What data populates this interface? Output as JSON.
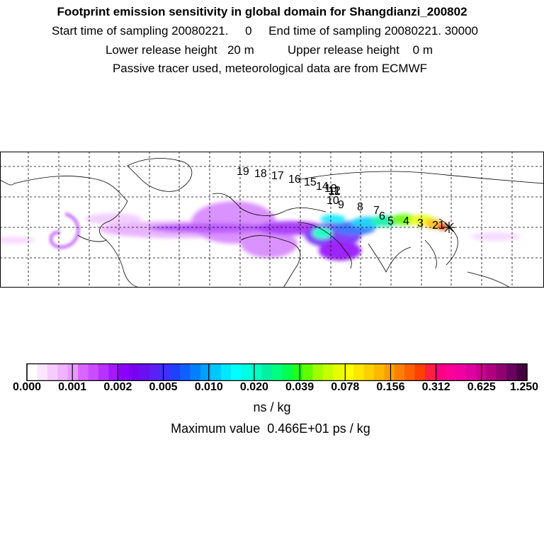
{
  "header": {
    "title": "Footprint emission sensitivity in global domain for Shangdianzi_200802",
    "line2": "Start time of sampling 20080221.     0     End time of sampling 20080221. 30000",
    "line3": "Lower release height   20 m          Upper release height    0 m",
    "line4": "Passive tracer used, meteorological data are from ECMWF"
  },
  "map": {
    "station_marker": "star-icon",
    "trajectory_labels": [
      "21",
      "3",
      "4",
      "5",
      "6",
      "7",
      "8",
      "9",
      "10",
      "11",
      "12",
      "13",
      "14",
      "15",
      "16",
      "17",
      "18",
      "19"
    ]
  },
  "colorbar": {
    "ticks": [
      "0.000",
      "0.001",
      "0.002",
      "0.005",
      "0.010",
      "0.020",
      "0.039",
      "0.078",
      "0.156",
      "0.312",
      "0.625",
      "1.250"
    ],
    "colors": [
      "#ffffff",
      "#fbe6ff",
      "#f5ccff",
      "#efb3ff",
      "#e999ff",
      "#d966ff",
      "#c94dff",
      "#b833ff",
      "#a31aff",
      "#8c00ff",
      "#7a00f0",
      "#6a10f0",
      "#5a20f5",
      "#4030f8",
      "#2040ff",
      "#1060ff",
      "#0080ff",
      "#00a0ff",
      "#00c8ff",
      "#00e8ff",
      "#00ffff",
      "#00ffe0",
      "#00ffc0",
      "#00f0a0",
      "#00ff80",
      "#00ff50",
      "#20ff20",
      "#60ff00",
      "#a0ff00",
      "#c8ff00",
      "#e8ff00",
      "#ffff00",
      "#ffe800",
      "#ffd000",
      "#ffb800",
      "#ffa000",
      "#ff8000",
      "#ff6000",
      "#ff4000",
      "#ff2040",
      "#ff0080",
      "#ff0099",
      "#f000a0",
      "#e000a0",
      "#c80090",
      "#b00080",
      "#900070",
      "#6a0060",
      "#440040"
    ],
    "units": "ns / kg",
    "max_value_text": "Maximum value  0.466E+01 ps / kg"
  }
}
